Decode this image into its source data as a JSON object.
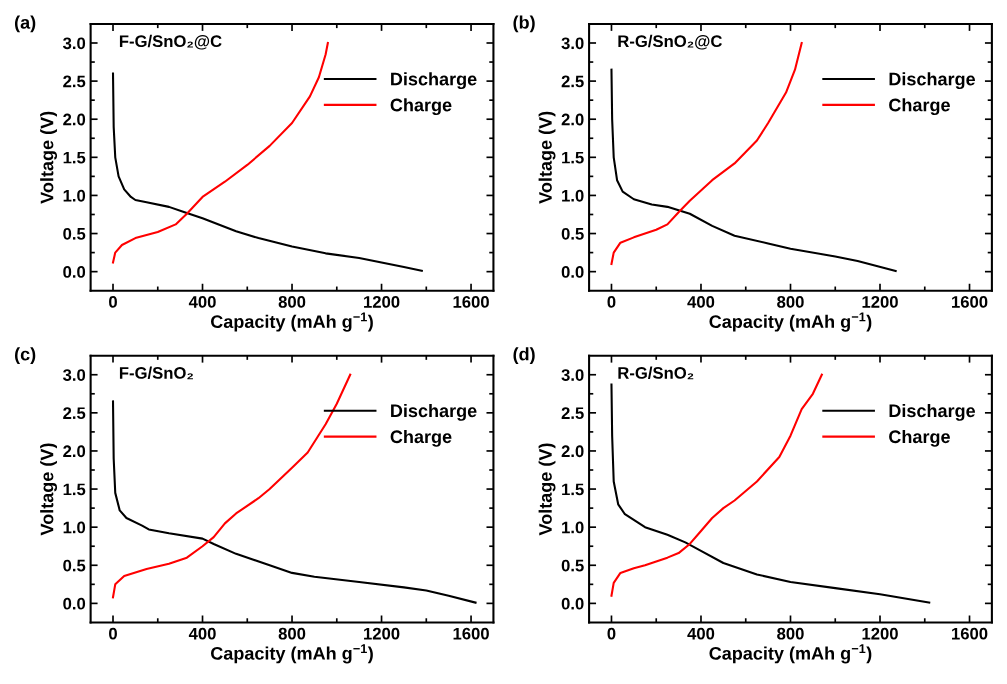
{
  "chart_data": [
    {
      "type": "line",
      "xlabel": "Capacity (mAh g$^{−1}$)",
      "ylabel": "Voltage (V)",
      "annotations": [
        "(a)",
        "F-G/SnO₂@C"
      ],
      "legend": "top right",
      "grid": false,
      "line_style": "solid",
      "xlim": [
        -100,
        1700
      ],
      "xticks": [
        0,
        {
          "value": 200,
          "label": null
        },
        400,
        {
          "value": 600,
          "label": null
        },
        800,
        {
          "value": 1000,
          "label": null
        },
        1200,
        {
          "value": 1400,
          "label": null
        },
        1600
      ],
      "ylim": [
        -0.25,
        3.25
      ],
      "yticks": [
        {
          "value": 0,
          "label": "0.0"
        },
        {
          "value": 0.25,
          "label": null
        },
        0.5,
        {
          "value": 0.75,
          "label": null
        },
        {
          "value": 1,
          "label": "1.0"
        },
        {
          "value": 1.25,
          "label": null
        },
        1.5,
        {
          "value": 1.75,
          "label": null
        },
        {
          "value": 2,
          "label": "2.0"
        },
        {
          "value": 2.25,
          "label": null
        },
        2.5,
        {
          "value": 2.75,
          "label": null
        },
        {
          "value": 3,
          "label": "3.0"
        }
      ],
      "series": [
        {
          "name": "Discharge",
          "color": "#000000",
          "x": [
            0,
            3,
            10,
            25,
            50,
            80,
            100,
            150,
            250,
            320,
            400,
            550,
            650,
            800,
            950,
            1100,
            1200,
            1300,
            1380
          ],
          "values": [
            2.6,
            1.9,
            1.5,
            1.25,
            1.08,
            0.98,
            0.94,
            0.91,
            0.85,
            0.78,
            0.7,
            0.53,
            0.44,
            0.33,
            0.24,
            0.18,
            0.12,
            0.06,
            0.01
          ]
        },
        {
          "name": "Charge",
          "color": "#ff0000",
          "x": [
            0,
            10,
            40,
            100,
            200,
            280,
            330,
            400,
            500,
            600,
            700,
            800,
            880,
            920,
            950,
            960
          ],
          "values": [
            0.12,
            0.25,
            0.35,
            0.44,
            0.52,
            0.62,
            0.76,
            0.98,
            1.18,
            1.4,
            1.65,
            1.95,
            2.3,
            2.55,
            2.85,
            3.0
          ]
        }
      ]
    },
    {
      "type": "line",
      "xlabel": "Capacity (mAh g$^{−1}$)",
      "ylabel": "Voltage (V)",
      "annotations": [
        "(b)",
        "R-G/SnO₂@C"
      ],
      "legend": "top right",
      "grid": false,
      "line_style": "solid",
      "xlim": [
        -100,
        1700
      ],
      "xticks": [
        0,
        {
          "value": 200,
          "label": null
        },
        400,
        {
          "value": 600,
          "label": null
        },
        800,
        {
          "value": 1000,
          "label": null
        },
        1200,
        {
          "value": 1400,
          "label": null
        },
        1600
      ],
      "ylim": [
        -0.25,
        3.25
      ],
      "yticks": [
        {
          "value": 0,
          "label": "0.0"
        },
        {
          "value": 0.25,
          "label": null
        },
        0.5,
        {
          "value": 0.75,
          "label": null
        },
        {
          "value": 1,
          "label": "1.0"
        },
        {
          "value": 1.25,
          "label": null
        },
        1.5,
        {
          "value": 1.75,
          "label": null
        },
        {
          "value": 2,
          "label": "2.0"
        },
        {
          "value": 2.25,
          "label": null
        },
        2.5,
        {
          "value": 2.75,
          "label": null
        },
        {
          "value": 3,
          "label": "3.0"
        }
      ],
      "series": [
        {
          "name": "Discharge",
          "color": "#000000",
          "x": [
            0,
            3,
            10,
            25,
            50,
            100,
            180,
            250,
            350,
            450,
            550,
            700,
            800,
            1000,
            1100,
            1270
          ],
          "values": [
            2.65,
            2.0,
            1.5,
            1.2,
            1.05,
            0.95,
            0.88,
            0.85,
            0.76,
            0.6,
            0.47,
            0.37,
            0.3,
            0.2,
            0.14,
            0.01
          ]
        },
        {
          "name": "Charge",
          "color": "#ff0000",
          "x": [
            0,
            10,
            40,
            100,
            200,
            250,
            300,
            350,
            450,
            550,
            650,
            700,
            780,
            820,
            850
          ],
          "values": [
            0.1,
            0.25,
            0.38,
            0.45,
            0.55,
            0.62,
            0.78,
            0.93,
            1.2,
            1.42,
            1.72,
            1.95,
            2.35,
            2.65,
            3.0
          ]
        }
      ]
    },
    {
      "type": "line",
      "xlabel": "Capacity (mAh g$^{−1}$)",
      "ylabel": "Voltage (V)",
      "annotations": [
        "(c)",
        "F-G/SnO₂"
      ],
      "legend": "top right",
      "grid": false,
      "line_style": "solid",
      "xlim": [
        -100,
        1700
      ],
      "xticks": [
        0,
        {
          "value": 200,
          "label": null
        },
        400,
        {
          "value": 600,
          "label": null
        },
        800,
        {
          "value": 1000,
          "label": null
        },
        1200,
        {
          "value": 1400,
          "label": null
        },
        1600
      ],
      "ylim": [
        -0.25,
        3.25
      ],
      "yticks": [
        {
          "value": 0,
          "label": "0.0"
        },
        {
          "value": 0.25,
          "label": null
        },
        0.5,
        {
          "value": 0.75,
          "label": null
        },
        {
          "value": 1,
          "label": "1.0"
        },
        {
          "value": 1.25,
          "label": null
        },
        1.5,
        {
          "value": 1.75,
          "label": null
        },
        {
          "value": 2,
          "label": "2.0"
        },
        {
          "value": 2.25,
          "label": null
        },
        2.5,
        {
          "value": 2.75,
          "label": null
        },
        {
          "value": 3,
          "label": "3.0"
        }
      ],
      "series": [
        {
          "name": "Discharge",
          "color": "#000000",
          "x": [
            0,
            3,
            10,
            30,
            60,
            130,
            160,
            250,
            400,
            450,
            550,
            700,
            800,
            900,
            1100,
            1300,
            1400,
            1500,
            1620
          ],
          "values": [
            2.65,
            1.9,
            1.45,
            1.22,
            1.12,
            1.02,
            0.97,
            0.92,
            0.85,
            0.78,
            0.65,
            0.5,
            0.4,
            0.35,
            0.28,
            0.21,
            0.17,
            0.1,
            0.01
          ]
        },
        {
          "name": "Charge",
          "color": "#ff0000",
          "x": [
            0,
            10,
            50,
            150,
            250,
            330,
            400,
            450,
            500,
            550,
            650,
            700,
            800,
            870,
            950,
            1000,
            1060
          ],
          "values": [
            0.08,
            0.25,
            0.36,
            0.45,
            0.52,
            0.6,
            0.75,
            0.87,
            1.05,
            1.18,
            1.38,
            1.5,
            1.78,
            1.98,
            2.35,
            2.62,
            3.0
          ]
        }
      ]
    },
    {
      "type": "line",
      "xlabel": "Capacity (mAh g$^{−1}$)",
      "ylabel": "Voltage (V)",
      "annotations": [
        "(d)",
        "R-G/SnO₂"
      ],
      "legend": "top right",
      "grid": false,
      "line_style": "solid",
      "xlim": [
        -100,
        1700
      ],
      "xticks": [
        0,
        {
          "value": 200,
          "label": null
        },
        400,
        {
          "value": 600,
          "label": null
        },
        800,
        {
          "value": 1000,
          "label": null
        },
        1200,
        {
          "value": 1400,
          "label": null
        },
        1600
      ],
      "ylim": [
        -0.25,
        3.25
      ],
      "yticks": [
        {
          "value": 0,
          "label": "0.0"
        },
        {
          "value": 0.25,
          "label": null
        },
        0.5,
        {
          "value": 0.75,
          "label": null
        },
        {
          "value": 1,
          "label": "1.0"
        },
        {
          "value": 1.25,
          "label": null
        },
        1.5,
        {
          "value": 1.75,
          "label": null
        },
        {
          "value": 2,
          "label": "2.0"
        },
        {
          "value": 2.25,
          "label": null
        },
        2.5,
        {
          "value": 2.75,
          "label": null
        },
        {
          "value": 3,
          "label": "3.0"
        }
      ],
      "series": [
        {
          "name": "Discharge",
          "color": "#000000",
          "x": [
            0,
            3,
            10,
            30,
            60,
            150,
            250,
            330,
            400,
            500,
            650,
            800,
            1000,
            1200,
            1420
          ],
          "values": [
            2.87,
            2.2,
            1.6,
            1.3,
            1.17,
            1.0,
            0.9,
            0.8,
            0.69,
            0.53,
            0.38,
            0.28,
            0.2,
            0.12,
            0.01
          ]
        },
        {
          "name": "Charge",
          "color": "#ff0000",
          "x": [
            0,
            10,
            40,
            100,
            150,
            250,
            300,
            350,
            400,
            450,
            500,
            550,
            650,
            750,
            800,
            850,
            900,
            940
          ],
          "values": [
            0.1,
            0.27,
            0.4,
            0.46,
            0.5,
            0.6,
            0.66,
            0.78,
            0.95,
            1.12,
            1.25,
            1.35,
            1.6,
            1.92,
            2.2,
            2.55,
            2.75,
            3.0
          ]
        }
      ]
    }
  ]
}
